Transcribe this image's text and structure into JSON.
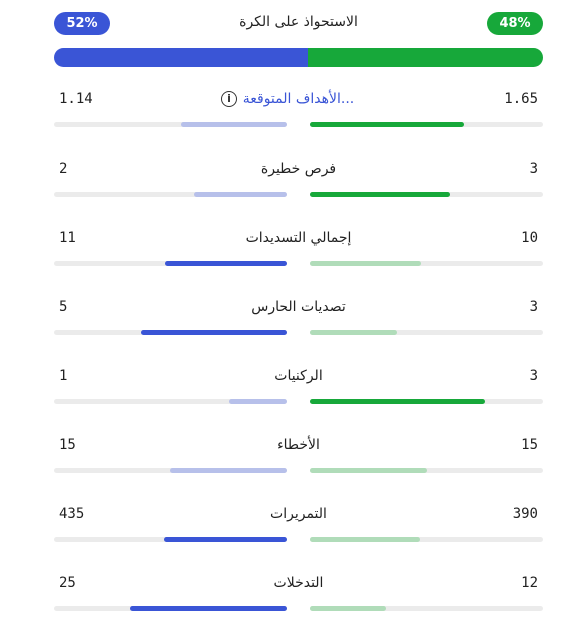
{
  "colors": {
    "away": "#3a55d6",
    "away_light": "#b7c0ea",
    "home": "#17a83a",
    "home_light": "#b0dcb9",
    "track": "#ebebeb"
  },
  "possession": {
    "title": "الاستحواذ على الكرة",
    "away_label": "52%",
    "home_label": "48%",
    "away_value": 52,
    "home_value": 48
  },
  "stats": [
    {
      "label": "الأهداف المتوقعة...",
      "left": "1.14",
      "right": "1.65",
      "left_num": 1.14,
      "right_num": 1.65,
      "max": 2.5,
      "highlight": "right",
      "has_info": true,
      "link": true
    },
    {
      "label": "فرص خطيرة",
      "left": "2",
      "right": "3",
      "left_num": 2,
      "right_num": 3,
      "max": 5,
      "highlight": "right"
    },
    {
      "label": "إجمالي التسديدات",
      "left": "11",
      "right": "10",
      "left_num": 11,
      "right_num": 10,
      "max": 21,
      "highlight": "left"
    },
    {
      "label": "تصديات الحارس",
      "left": "5",
      "right": "3",
      "left_num": 5,
      "right_num": 3,
      "max": 8,
      "highlight": "left"
    },
    {
      "label": "الركنيات",
      "left": "1",
      "right": "3",
      "left_num": 1,
      "right_num": 3,
      "max": 4,
      "highlight": "right"
    },
    {
      "label": "الأخطاء",
      "left": "15",
      "right": "15",
      "left_num": 15,
      "right_num": 15,
      "max": 30,
      "highlight": "none"
    },
    {
      "label": "التمريرات",
      "left": "435",
      "right": "390",
      "left_num": 435,
      "right_num": 390,
      "max": 825,
      "highlight": "left"
    },
    {
      "label": "التدخلات",
      "left": "25",
      "right": "12",
      "left_num": 25,
      "right_num": 12,
      "max": 37,
      "highlight": "left"
    }
  ]
}
